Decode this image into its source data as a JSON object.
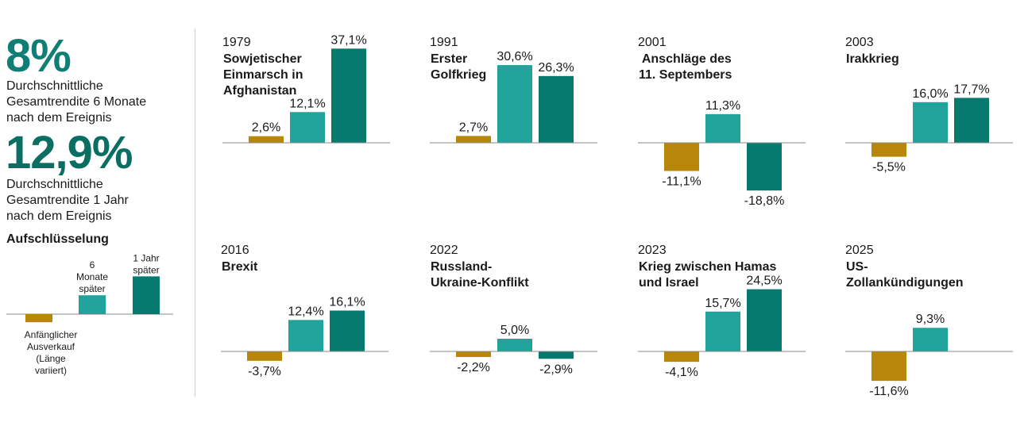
{
  "summary": {
    "six_month_value": "8%",
    "six_month_desc": [
      "Durchschnittliche",
      "Gesamtrendite 6 Monate",
      "nach dem Ereignis"
    ],
    "one_year_value": "12,9%",
    "one_year_desc": [
      "Durchschnittliche",
      "Gesamtrendite 1 Jahr",
      "nach dem Ereignis"
    ]
  },
  "legend": {
    "title": "Aufschlüsselung",
    "items": [
      {
        "label_lines": [
          "Anfänglicher",
          "Ausverkauf",
          "(Länge",
          "variiert)"
        ],
        "sample_value": -3
      },
      {
        "label_lines": [
          "6",
          "Monate",
          "später"
        ],
        "sample_value": 7
      },
      {
        "label_lines": [
          "1 Jahr",
          "später"
        ],
        "sample_value": 14
      }
    ]
  },
  "colors": {
    "initial": "#b9860c",
    "six_month": "#1fa39b",
    "one_year": "#077a70",
    "baseline": "#8a8a8a",
    "divider": "#d0d0d0"
  },
  "chart_data": [
    {
      "type": "bar",
      "year": "1979",
      "title_lines": [
        "Sowjetischer",
        "Einmarsch in",
        "Afghanistan"
      ],
      "categories": [
        "Anfänglicher Ausverkauf",
        "6 Monate später",
        "1 Jahr später"
      ],
      "values": [
        2.6,
        12.1,
        37.1
      ],
      "labels": [
        "2,6%",
        "12,1%",
        "37,1%"
      ]
    },
    {
      "type": "bar",
      "year": "1991",
      "title_lines": [
        "Erster",
        "Golfkrieg"
      ],
      "categories": [
        "Anfänglicher Ausverkauf",
        "6 Monate später",
        "1 Jahr später"
      ],
      "values": [
        2.7,
        30.6,
        26.3
      ],
      "labels": [
        "2,7%",
        "30,6%",
        "26,3%"
      ]
    },
    {
      "type": "bar",
      "year": "2001",
      "title_lines": [
        " Anschläge des",
        "11. Septembers"
      ],
      "categories": [
        "Anfänglicher Ausverkauf",
        "6 Monate später",
        "1 Jahr später"
      ],
      "values": [
        -11.1,
        11.3,
        -18.8
      ],
      "labels": [
        "-11,1%",
        "11,3%",
        "-18,8%"
      ]
    },
    {
      "type": "bar",
      "year": "2003",
      "title_lines": [
        "Irakkrieg"
      ],
      "categories": [
        "Anfänglicher Ausverkauf",
        "6 Monate später",
        "1 Jahr später"
      ],
      "values": [
        -5.5,
        16.0,
        17.7
      ],
      "labels": [
        "-5,5%",
        "16,0%",
        "17,7%"
      ]
    },
    {
      "type": "bar",
      "year": "2016",
      "title_lines": [
        "Brexit"
      ],
      "categories": [
        "Anfänglicher Ausverkauf",
        "6 Monate später",
        "1 Jahr später"
      ],
      "values": [
        -3.7,
        12.4,
        16.1
      ],
      "labels": [
        "-3,7%",
        "12,4%",
        "16,1%"
      ]
    },
    {
      "type": "bar",
      "year": "2022",
      "title_lines": [
        "Russland-",
        "Ukraine-Konflikt"
      ],
      "categories": [
        "Anfänglicher Ausverkauf",
        "6 Monate später",
        "1 Jahr später"
      ],
      "values": [
        -2.2,
        5.0,
        -2.9
      ],
      "labels": [
        "-2,2%",
        "5,0%",
        "-2,9%"
      ]
    },
    {
      "type": "bar",
      "year": "2023",
      "title_lines": [
        "Krieg zwischen Hamas",
        "und Israel"
      ],
      "categories": [
        "Anfänglicher Ausverkauf",
        "6 Monate später",
        "1 Jahr später"
      ],
      "values": [
        -4.1,
        15.7,
        24.5
      ],
      "labels": [
        "-4,1%",
        "15,7%",
        "24,5%"
      ]
    },
    {
      "type": "bar",
      "year": "2025",
      "title_lines": [
        "US-",
        "Zollankündigungen"
      ],
      "categories": [
        "Anfänglicher Ausverkauf",
        "6 Monate später"
      ],
      "values": [
        -11.6,
        9.3
      ],
      "labels": [
        "-11,6%",
        "9,3%"
      ]
    }
  ]
}
